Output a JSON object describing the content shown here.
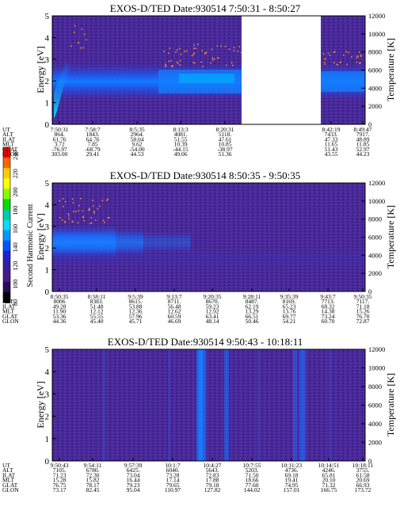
{
  "colorbar": {
    "label": "Second Harmonic Current",
    "ticks": [
      "240",
      "220",
      "200",
      "180",
      "160",
      "140",
      "120",
      "100",
      "80"
    ],
    "colors": [
      "#ff0000",
      "#ff6600",
      "#ffcc00",
      "#ffff00",
      "#88ff00",
      "#00dd00",
      "#00ccaa",
      "#00ddff",
      "#0099ff",
      "#0055ff",
      "#2222cc",
      "#3a1d99",
      "#4b1a8a",
      "#2a0a5a",
      "#000000"
    ]
  },
  "chart_data": [
    {
      "type": "heatmap",
      "title": "EXOS-D/TED   Date:930514  7:50:31 - 8:50:27",
      "ylabel": "Energy [eV]",
      "ylim": [
        0,
        5
      ],
      "yticks": [
        "0",
        "1",
        "2",
        "3",
        "4",
        "5"
      ],
      "y2label": "Temperature [K]",
      "y2lim": [
        0,
        12000
      ],
      "y2ticks": [
        "0",
        "2000",
        "4000",
        "6000",
        "8000",
        "10000",
        "12000"
      ],
      "data_gap": [
        "8:20:31",
        "8:42:19"
      ],
      "table": {
        "row_labels": [
          "UT",
          "ALT",
          "ILAT",
          "MLT",
          "GLAT",
          "GLON"
        ],
        "columns": [
          [
            "7:50:31",
            "864.",
            "61.76",
            "3.72",
            "-76.97",
            "303.00"
          ],
          [
            "7:58:7",
            "1843.",
            "64.76",
            "7.85",
            "-68.79",
            "29.41"
          ],
          [
            "8:5:35",
            "2964.",
            "58.04",
            "9.62",
            "-54.00",
            "44.53"
          ],
          [
            "8:13:3",
            "4081.",
            "51.55",
            "10.39",
            "-44.15",
            "49.06"
          ],
          [
            "8:20:31",
            "5118.",
            "47.61",
            "10.85",
            "-38.97",
            "51.36"
          ],
          [
            "8:42:19",
            "7433.",
            "47.33",
            "11.65",
            "51.43",
            "43.55"
          ],
          [
            "8:49:47",
            "7917.",
            "48.89",
            "11.85",
            "52.97",
            "44.23"
          ]
        ]
      }
    },
    {
      "type": "heatmap",
      "title": "EXOS-D/TED   Date:930514  8:50:35 - 9:50:35",
      "ylabel": "Energy [eV]",
      "ylim": [
        0,
        5
      ],
      "yticks": [
        "0",
        "1",
        "2",
        "3",
        "4",
        "5"
      ],
      "y2label": "Temperature [K]",
      "y2lim": [
        0,
        12000
      ],
      "y2ticks": [
        "0",
        "2000",
        "4000",
        "6000",
        "8000",
        "10000",
        "12000"
      ],
      "table": {
        "row_labels": [
          "UT",
          "ALT",
          "ILAT",
          "MLT",
          "GLAT",
          "GLON"
        ],
        "columns": [
          [
            "8:50:35",
            "8006",
            "49.28",
            "11.90",
            "53.36",
            "44.36"
          ],
          [
            "8:58:11",
            "8383.",
            "51.48",
            "12.12",
            "55.55",
            "45.40"
          ],
          [
            "9:5:39",
            "8615.",
            "53.88",
            "12.36",
            "57.96",
            "45.71"
          ],
          [
            "9:13:7",
            "8711.",
            "56.48",
            "12.62",
            "60.59",
            "46.69"
          ],
          [
            "9:20:35",
            "8670.",
            "59.23",
            "12.92",
            "63.41",
            "48.14"
          ],
          [
            "9:28:11",
            "8487.",
            "62.19",
            "13.29",
            "66.51",
            "50.46"
          ],
          [
            "9:35:39",
            "8169.",
            "65.23",
            "13.76",
            "69.77",
            "54.21"
          ],
          [
            "9:43:7",
            "7713.",
            "68.32",
            "14.38",
            "73.24",
            "60.70"
          ],
          [
            "9:50:35",
            "7117.",
            "71.18",
            "15.26",
            "76.70",
            "72.87"
          ]
        ]
      }
    },
    {
      "type": "heatmap",
      "title": "EXOS-D/TED   Date:930514  9:50:43 - 10:18:11",
      "ylabel": "Energy [eV]",
      "ylim": [
        0,
        5
      ],
      "yticks": [
        "0",
        "1",
        "2",
        "3",
        "4",
        "5"
      ],
      "y2label": "Temperature [K]",
      "y2lim": [
        0,
        12000
      ],
      "y2ticks": [
        "0",
        "2000",
        "4000",
        "6000",
        "8000",
        "10000",
        "12000"
      ],
      "table": {
        "row_labels": [
          "UT",
          "ALT",
          "ILAT",
          "MLT",
          "GLAT",
          "GLON"
        ],
        "columns": [
          [
            "9:50:43",
            "7105.",
            "71.23",
            "15.28",
            "76.75",
            "73.17"
          ],
          [
            "9:54:11",
            "6780.",
            "72.30",
            "15.82",
            "78.17",
            "82.45"
          ],
          [
            "9:57:39",
            "6425.",
            "73.04",
            "16.44",
            "79.23",
            "95.04"
          ],
          [
            "10:1:7",
            "6040.",
            "73.28",
            "17.14",
            "79.65",
            "110.97"
          ],
          [
            "10:4:27",
            "5643.",
            "72.83",
            "17.88",
            "79.18",
            "127.82"
          ],
          [
            "10:7:55",
            "5203.",
            "71.50",
            "18.66",
            "77.60",
            "144.02"
          ],
          [
            "10:11:23",
            "4736.",
            "69.18",
            "19.41",
            "74.95",
            "157.01"
          ],
          [
            "10:14:51",
            "4246.",
            "65.81",
            "20.10",
            "71.32",
            "166.75"
          ],
          [
            "10:18:11",
            "3755.",
            "61.58",
            "20.69",
            "66.93",
            "173.72"
          ]
        ]
      }
    }
  ]
}
